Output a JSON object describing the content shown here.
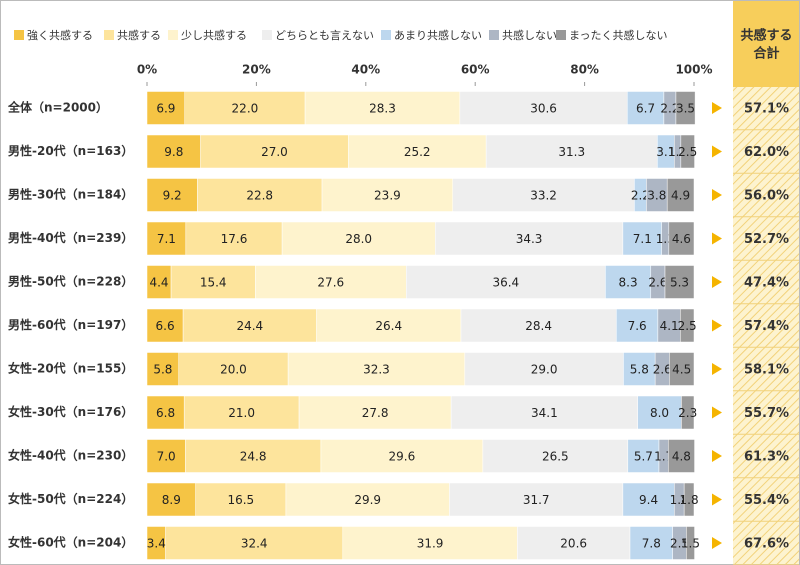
{
  "chart_data": {
    "type": "bar",
    "orientation": "horizontal",
    "stacked": true,
    "categories": [
      "全体（n=2000）",
      "男性-20代（n=163）",
      "男性-30代（n=184）",
      "男性-40代（n=239）",
      "男性-50代（n=228）",
      "男性-60代（n=197）",
      "女性-20代（n=155）",
      "女性-30代（n=176）",
      "女性-40代（n=230）",
      "女性-50代（n=224）",
      "女性-60代（n=204）"
    ],
    "series": [
      {
        "name": "強く共感する",
        "color": "#f5c444",
        "values": [
          6.9,
          9.8,
          9.2,
          7.1,
          4.4,
          6.6,
          5.8,
          6.8,
          7.0,
          8.9,
          3.4
        ],
        "value_labels": [
          "6.9",
          "9.8",
          "9.2",
          "7.1",
          "4.4",
          "6.6",
          "5.8",
          "6.8",
          "7.0",
          "8.9",
          "3.4"
        ]
      },
      {
        "name": "共感する",
        "color": "#fde49c",
        "values": [
          22.0,
          27.0,
          22.8,
          17.6,
          15.4,
          24.4,
          20.0,
          21.0,
          24.8,
          16.5,
          32.4
        ],
        "value_labels": [
          "22.0",
          "27.0",
          "22.8",
          "17.6",
          "15.4",
          "24.4",
          "20.0",
          "21.0",
          "24.8",
          "16.5",
          "32.4"
        ]
      },
      {
        "name": "少し共感する",
        "color": "#fef3cd",
        "values": [
          28.3,
          25.2,
          23.9,
          28.0,
          27.6,
          26.4,
          32.3,
          27.8,
          29.6,
          29.9,
          31.9
        ],
        "value_labels": [
          "28.3",
          "25.2",
          "23.9",
          "28.0",
          "27.6",
          "26.4",
          "32.3",
          "27.8",
          "29.6",
          "29.9",
          "31.9"
        ]
      },
      {
        "name": "どちらとも言えない",
        "color": "#eeeeee",
        "values": [
          30.6,
          31.3,
          33.2,
          34.3,
          36.4,
          28.4,
          29.0,
          34.1,
          26.5,
          31.7,
          20.6
        ],
        "value_labels": [
          "30.6",
          "31.3",
          "33.2",
          "34.3",
          "36.4",
          "28.4",
          "29.0",
          "34.1",
          "26.5",
          "31.7",
          "20.6"
        ]
      },
      {
        "name": "あまり共感しない",
        "color": "#bdd7ee",
        "values": [
          6.7,
          3.1,
          2.2,
          7.1,
          8.3,
          7.6,
          5.8,
          8.0,
          5.7,
          9.4,
          7.8
        ],
        "value_labels": [
          "6.7",
          "3.1",
          "2.2",
          "7.1",
          "8.3",
          "7.6",
          "5.8",
          "8.0",
          "5.7",
          "9.4",
          "7.8"
        ]
      },
      {
        "name": "共感しない",
        "color": "#adb6c4",
        "values": [
          2.2,
          1.2,
          3.8,
          1.3,
          2.6,
          4.1,
          2.6,
          null,
          1.7,
          1.8,
          2.5
        ],
        "value_labels": [
          "2.2",
          "1.2",
          "3.8",
          "1.3",
          "2.6",
          "4.1",
          "2.6",
          null,
          "1.7",
          "1.8",
          "2.5"
        ]
      },
      {
        "name": "まったく共感しない",
        "color": "#999999",
        "values": [
          3.5,
          2.5,
          4.9,
          4.6,
          5.3,
          2.5,
          4.5,
          2.3,
          4.8,
          1.8,
          1.5
        ],
        "value_labels": [
          "3.5",
          "2.5",
          "4.9",
          "4.6",
          "5.3",
          "2.5",
          "4.5",
          "2.3",
          "4.8",
          "1.8",
          "1.5"
        ]
      }
    ],
    "xlim": [
      0,
      100
    ],
    "xticks": [
      {
        "value": 0,
        "label": "0%"
      },
      {
        "value": 20,
        "label": "20%"
      },
      {
        "value": 40,
        "label": "40%"
      },
      {
        "value": 60,
        "label": "60%"
      },
      {
        "value": 80,
        "label": "80%"
      },
      {
        "value": 100,
        "label": "100%"
      }
    ],
    "totals": {
      "title_lines": [
        "共感する",
        "合計"
      ],
      "color": "#f7ce5b",
      "values": [
        57.1,
        62.0,
        56.0,
        52.7,
        47.4,
        57.4,
        58.1,
        55.7,
        61.3,
        55.4,
        67.6
      ],
      "value_labels": [
        "57.1%",
        "62.0%",
        "56.0%",
        "52.7%",
        "47.4%",
        "57.4%",
        "58.1%",
        "55.7%",
        "61.3%",
        "55.4%",
        "67.6%"
      ]
    }
  }
}
